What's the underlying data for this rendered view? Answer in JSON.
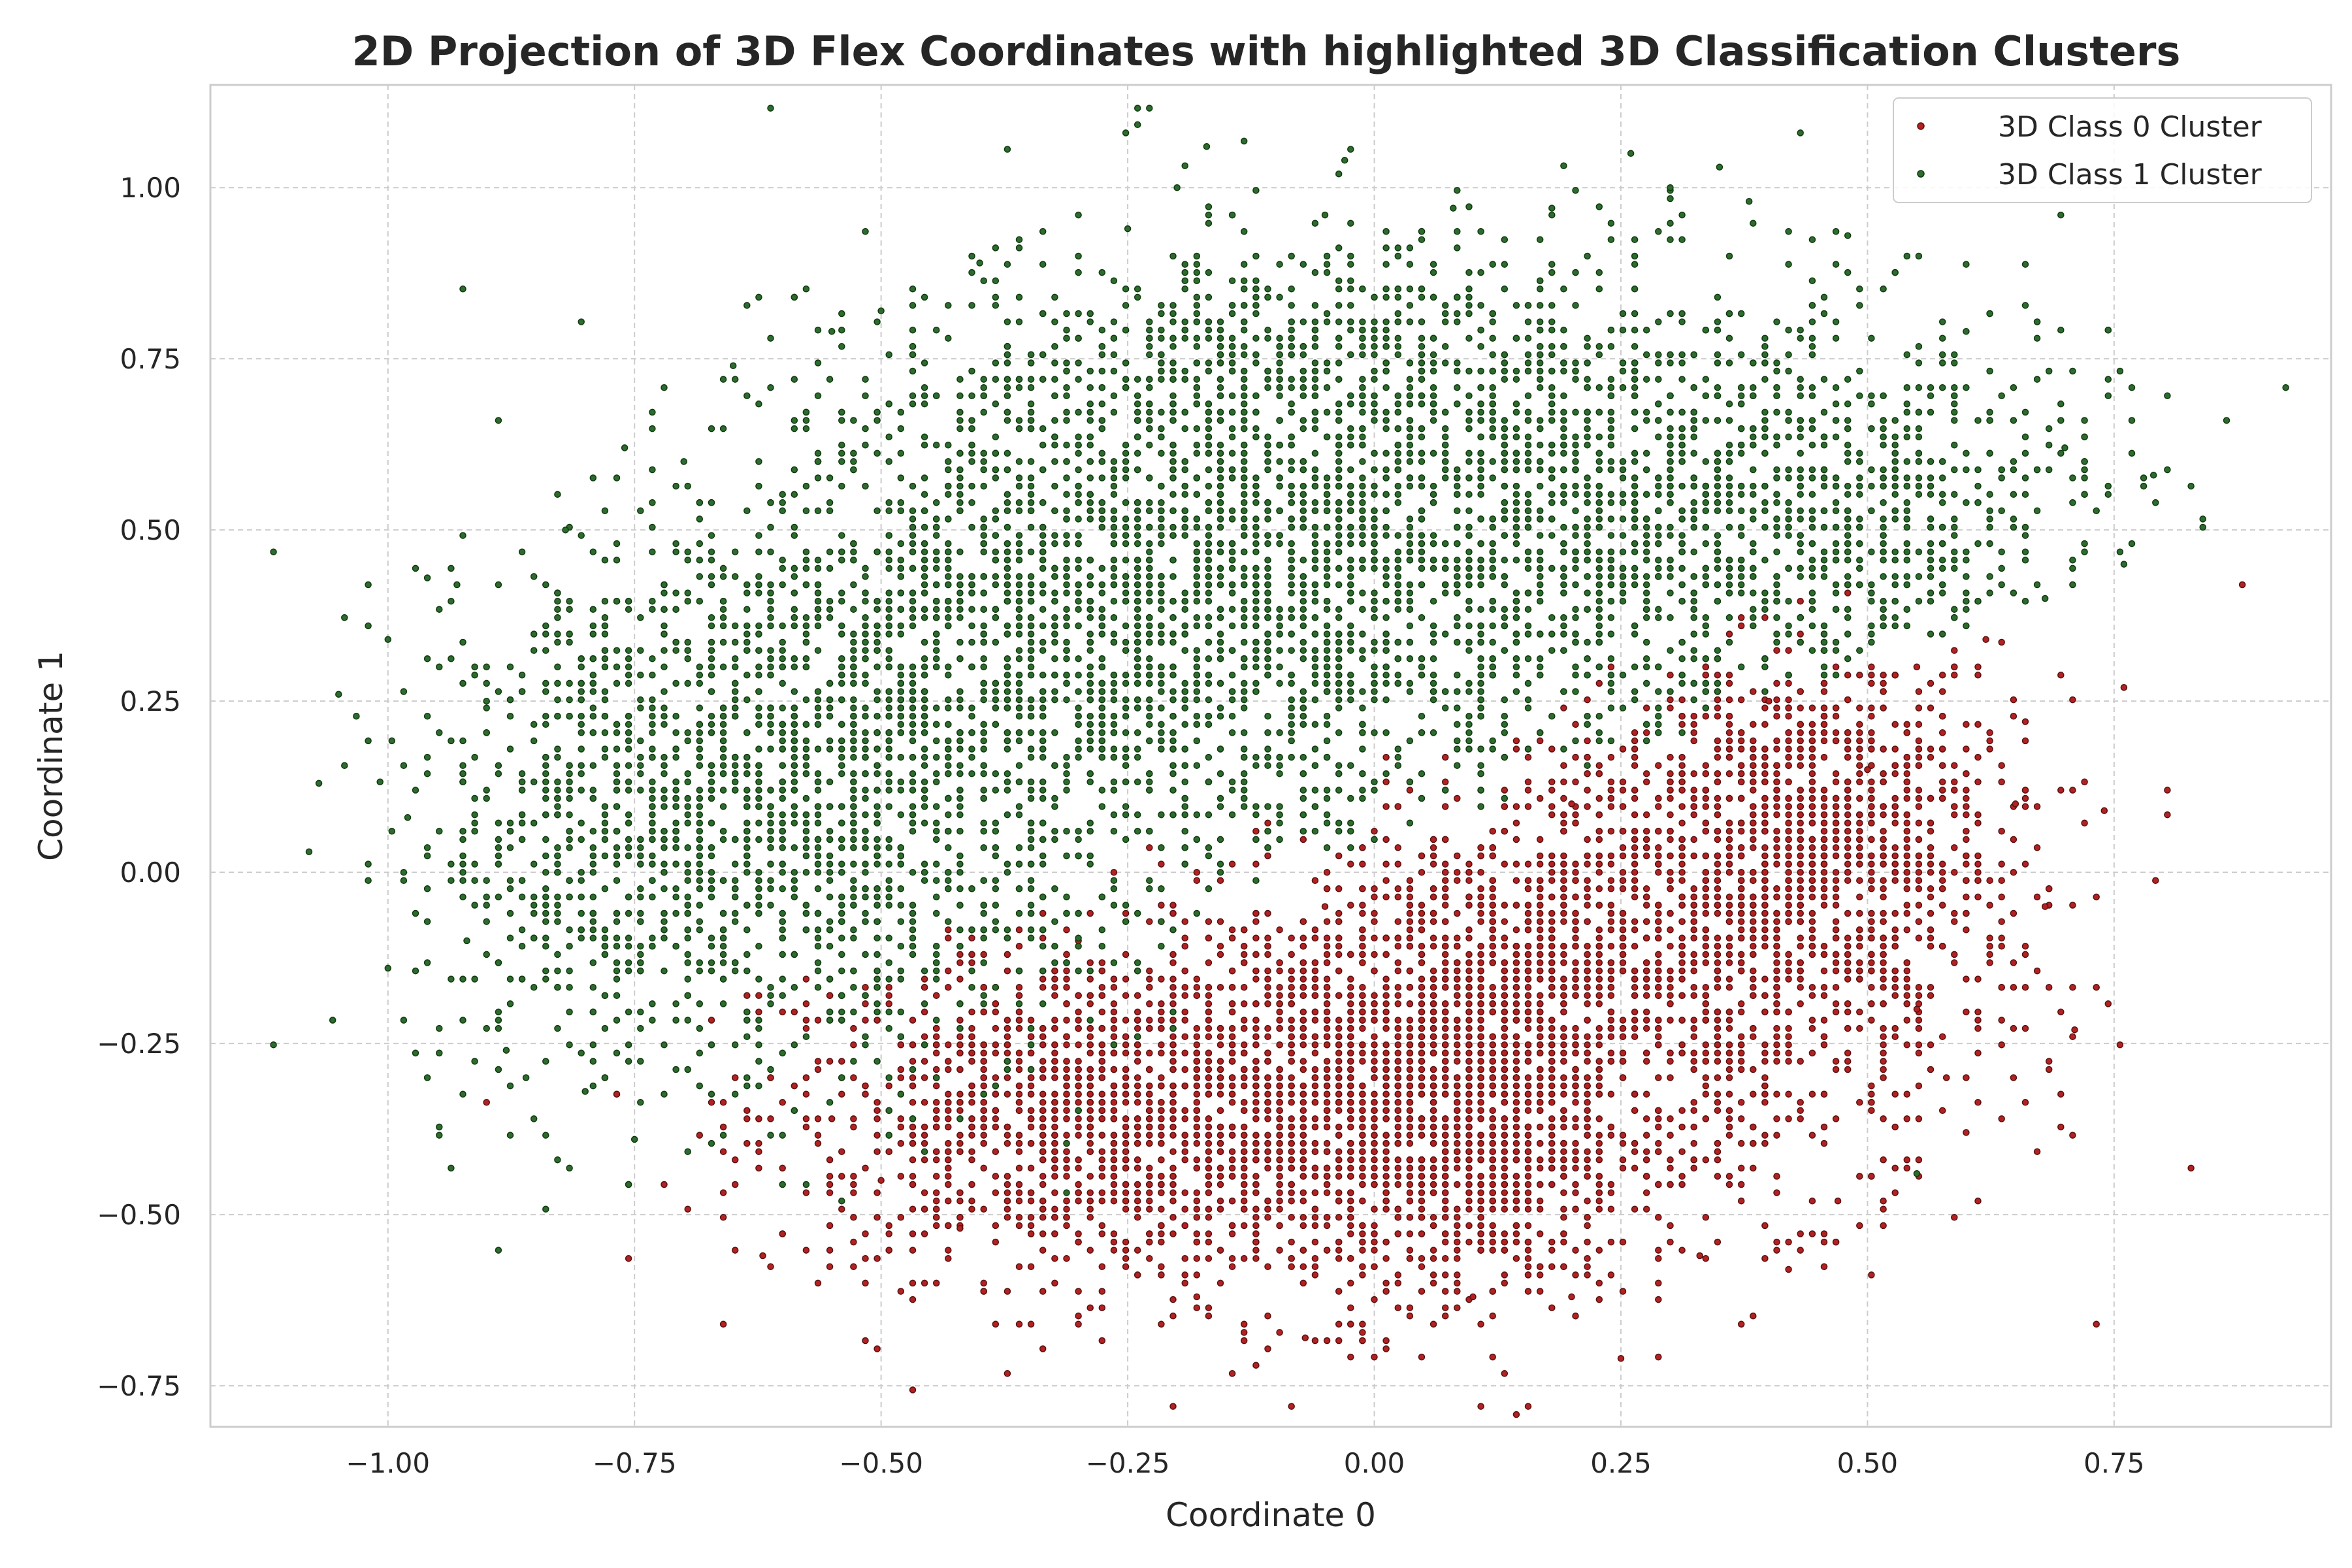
{
  "chart_data": {
    "type": "scatter",
    "title": "2D Projection of 3D Flex Coordinates with highlighted 3D Classification Clusters",
    "xlabel": "Coordinate 0",
    "ylabel": "Coordinate 1",
    "xlim": [
      -1.18,
      0.97
    ],
    "ylim": [
      -0.81,
      1.15
    ],
    "xticks": [
      -1.0,
      -0.75,
      -0.5,
      -0.25,
      0.0,
      0.25,
      0.5,
      0.75
    ],
    "xtick_labels": [
      "−1.00",
      "−0.75",
      "−0.50",
      "−0.25",
      "0.00",
      "0.25",
      "0.50",
      "0.75"
    ],
    "yticks": [
      -0.75,
      -0.5,
      -0.25,
      0.0,
      0.25,
      0.5,
      0.75,
      1.0
    ],
    "ytick_labels": [
      "−0.75",
      "−0.50",
      "−0.25",
      "0.00",
      "0.25",
      "0.50",
      "0.75",
      "1.00"
    ],
    "grid": true,
    "legend_position": "top-right",
    "series": [
      {
        "name": "3D Class 0 Cluster",
        "color": "#b22222",
        "edge_color": "#5a0f0f",
        "points": [
          [
            0.88,
            0.42
          ],
          [
            0.76,
            0.27
          ],
          [
            0.74,
            0.09
          ],
          [
            0.71,
            -0.23
          ],
          [
            0.68,
            -0.05
          ],
          [
            0.25,
            -0.71
          ],
          [
            -0.12,
            -0.72
          ],
          [
            -0.62,
            -0.56
          ],
          [
            -0.07,
            -0.68
          ],
          [
            0.42,
            -0.58
          ],
          [
            0.62,
            0.34
          ],
          [
            0.6,
            -0.38
          ],
          [
            0.55,
            -0.2
          ],
          [
            0.5,
            0.15
          ],
          [
            -0.5,
            -0.45
          ],
          [
            -0.42,
            -0.52
          ],
          [
            -0.18,
            -0.62
          ],
          [
            0.1,
            -0.62
          ],
          [
            0.2,
            -0.62
          ],
          [
            0.33,
            -0.56
          ],
          [
            0.47,
            -0.48
          ],
          [
            0.58,
            -0.3
          ],
          [
            0.65,
            0.1
          ],
          [
            -0.55,
            -0.36
          ],
          [
            -0.3,
            -0.1
          ],
          [
            -0.05,
            -0.05
          ],
          [
            0.2,
            0.1
          ],
          [
            0.4,
            0.25
          ],
          [
            0.55,
            0.3
          ],
          [
            0.66,
            0.22
          ]
        ],
        "blobs": [
          {
            "cx": -0.3,
            "cy": -0.35,
            "sx": 0.16,
            "sy": 0.12,
            "n": 1150
          },
          {
            "cx": -0.05,
            "cy": -0.33,
            "sx": 0.15,
            "sy": 0.15,
            "n": 1200
          },
          {
            "cx": 0.1,
            "cy": -0.38,
            "sx": 0.08,
            "sy": 0.13,
            "n": 650
          },
          {
            "cx": 0.35,
            "cy": -0.12,
            "sx": 0.15,
            "sy": 0.18,
            "n": 1250
          },
          {
            "cx": 0.45,
            "cy": 0.08,
            "sx": 0.1,
            "sy": 0.12,
            "n": 700
          },
          {
            "cx": 0.12,
            "cy": -0.12,
            "sx": 0.1,
            "sy": 0.1,
            "n": 400
          }
        ]
      },
      {
        "name": "3D Class 1 Cluster",
        "color": "#2e6b2e",
        "edge_color": "#0f3a0f",
        "points": [
          [
            -1.08,
            0.03
          ],
          [
            -1.07,
            0.13
          ],
          [
            -1.05,
            0.26
          ],
          [
            -1.0,
            0.34
          ],
          [
            -1.0,
            -0.14
          ],
          [
            -0.98,
            0.08
          ],
          [
            -0.96,
            0.43
          ],
          [
            -0.93,
            0.42
          ],
          [
            -0.92,
            -0.1
          ],
          [
            -0.9,
            0.25
          ],
          [
            -0.88,
            -0.26
          ],
          [
            -0.86,
            -0.3
          ],
          [
            -0.82,
            0.5
          ],
          [
            -0.8,
            -0.32
          ],
          [
            -0.76,
            0.62
          ],
          [
            -0.75,
            -0.39
          ],
          [
            -0.7,
            0.6
          ],
          [
            -0.65,
            0.74
          ],
          [
            -0.55,
            0.79
          ],
          [
            -0.5,
            0.82
          ],
          [
            -0.4,
            0.89
          ],
          [
            -0.25,
            0.94
          ],
          [
            -0.2,
            1.0
          ],
          [
            -0.17,
            1.06
          ],
          [
            -0.05,
            0.96
          ],
          [
            -0.03,
            1.04
          ],
          [
            0.08,
            0.97
          ],
          [
            0.18,
            0.97
          ],
          [
            0.26,
            1.05
          ],
          [
            0.3,
            1.0
          ],
          [
            0.35,
            1.03
          ],
          [
            0.38,
            0.98
          ],
          [
            0.48,
            0.93
          ],
          [
            0.6,
            0.79
          ],
          [
            0.7,
            0.62
          ],
          [
            0.79,
            0.58
          ],
          [
            0.76,
            0.45
          ],
          [
            0.72,
            0.48
          ],
          [
            0.68,
            0.4
          ],
          [
            0.55,
            -0.44
          ]
        ],
        "blobs": [
          {
            "cx": -0.55,
            "cy": 0.15,
            "sx": 0.16,
            "sy": 0.22,
            "n": 1400
          },
          {
            "cx": -0.78,
            "cy": 0.05,
            "sx": 0.1,
            "sy": 0.2,
            "n": 500
          },
          {
            "cx": -0.3,
            "cy": 0.4,
            "sx": 0.16,
            "sy": 0.2,
            "n": 1200
          },
          {
            "cx": -0.05,
            "cy": 0.45,
            "sx": 0.14,
            "sy": 0.22,
            "n": 1100
          },
          {
            "cx": 0.25,
            "cy": 0.52,
            "sx": 0.15,
            "sy": 0.17,
            "n": 1000
          },
          {
            "cx": 0.5,
            "cy": 0.52,
            "sx": 0.13,
            "sy": 0.16,
            "n": 600
          },
          {
            "cx": -0.1,
            "cy": 0.75,
            "sx": 0.2,
            "sy": 0.08,
            "n": 400
          }
        ]
      }
    ]
  }
}
